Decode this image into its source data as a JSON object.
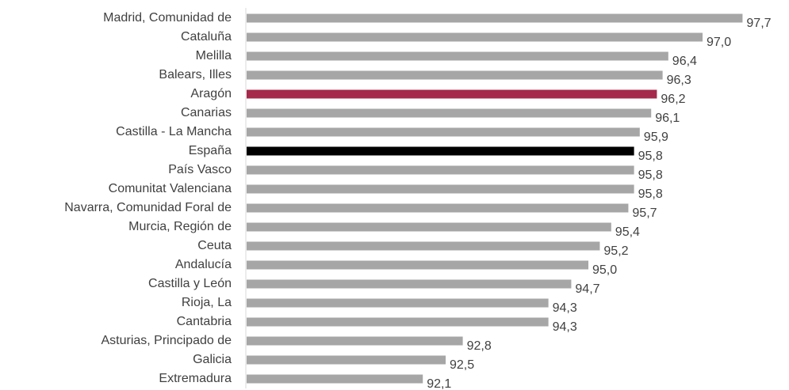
{
  "chart_data": {
    "type": "barh",
    "categories": [
      "Madrid, Comunidad de",
      "Cataluña",
      "Melilla",
      "Balears, Illes",
      "Aragón",
      "Canarias",
      "Castilla - La Mancha",
      "España",
      "País Vasco",
      "Comunitat Valenciana",
      "Navarra, Comunidad Foral de",
      "Murcia, Región de",
      "Ceuta",
      "Andalucía",
      "Castilla y León",
      "Rioja, La",
      "Cantabria",
      "Asturias, Principado de",
      "Galicia",
      "Extremadura"
    ],
    "values": [
      97.7,
      97.0,
      96.4,
      96.3,
      96.2,
      96.1,
      95.9,
      95.8,
      95.8,
      95.8,
      95.7,
      95.4,
      95.2,
      95.0,
      94.7,
      94.3,
      94.3,
      92.8,
      92.5,
      92.1
    ],
    "value_labels": [
      "97,7",
      "97,0",
      "96,4",
      "96,3",
      "96,2",
      "96,1",
      "95,9",
      "95,8",
      "95,8",
      "95,8",
      "95,7",
      "95,4",
      "95,2",
      "95,0",
      "94,7",
      "94,3",
      "94,3",
      "92,8",
      "92,5",
      "92,1"
    ],
    "colors": [
      "#a6a6a6",
      "#a6a6a6",
      "#a6a6a6",
      "#a6a6a6",
      "#a5294a",
      "#a6a6a6",
      "#a6a6a6",
      "#000000",
      "#a6a6a6",
      "#a6a6a6",
      "#a6a6a6",
      "#a6a6a6",
      "#a6a6a6",
      "#a6a6a6",
      "#a6a6a6",
      "#a6a6a6",
      "#a6a6a6",
      "#a6a6a6",
      "#a6a6a6",
      "#a6a6a6"
    ],
    "xlim": [
      89,
      98
    ]
  }
}
